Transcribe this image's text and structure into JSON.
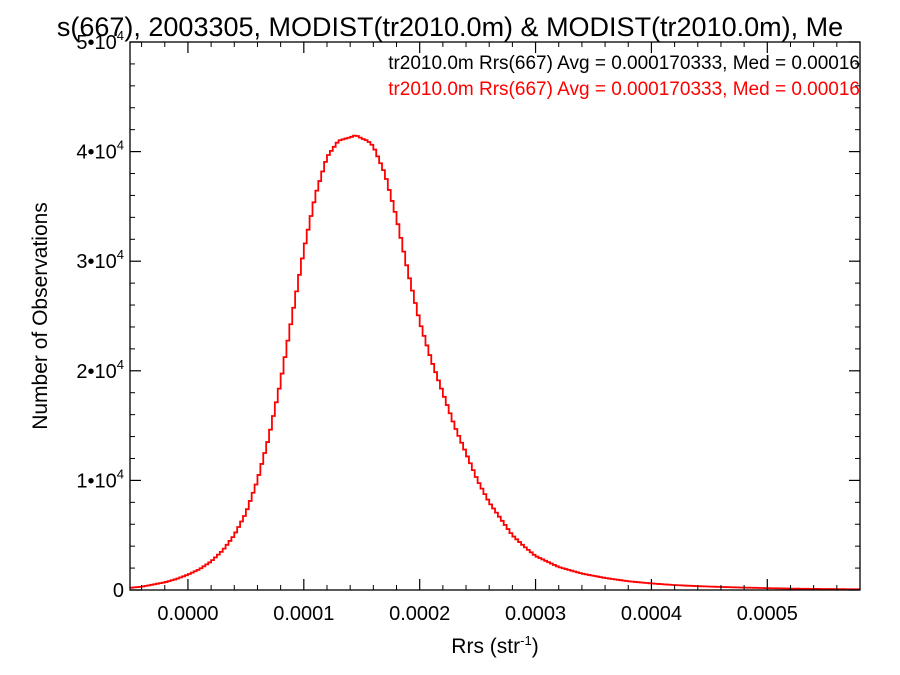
{
  "chart_data": {
    "type": "line",
    "title": "s(667), 2003305, MODIST(tr2010.0m) & MODIST(tr2010.0m), Me",
    "xlabel": "Rrs (str",
    "xlabel_sup": "-1",
    "xlabel_close": ")",
    "ylabel": "Number of Observations",
    "xlim": [
      -5e-05,
      0.00058
    ],
    "ylim": [
      0,
      50000
    ],
    "x_ticks": [
      {
        "value": 0.0,
        "label": "0.0000"
      },
      {
        "value": 0.0001,
        "label": "0.0001"
      },
      {
        "value": 0.0002,
        "label": "0.0002"
      },
      {
        "value": 0.0003,
        "label": "0.0003"
      },
      {
        "value": 0.0004,
        "label": "0.0004"
      },
      {
        "value": 0.0005,
        "label": "0.0005"
      }
    ],
    "y_ticks": [
      {
        "value": 0,
        "mant": "0",
        "exp": ""
      },
      {
        "value": 10000,
        "mant": "1•10",
        "exp": "4"
      },
      {
        "value": 20000,
        "mant": "2•10",
        "exp": "4"
      },
      {
        "value": 30000,
        "mant": "3•10",
        "exp": "4"
      },
      {
        "value": 40000,
        "mant": "4•10",
        "exp": "4"
      },
      {
        "value": 50000,
        "mant": "5•10",
        "exp": "4"
      }
    ],
    "legend_position": "top-right",
    "legend": [
      {
        "text": "tr2010.0m Rrs(667) Avg = 0.000170333, Med = 0.00016",
        "color": "#000000"
      },
      {
        "text": "tr2010.0m Rrs(667) Avg = 0.000170333, Med = 0.00016",
        "color": "#ff0000"
      }
    ],
    "series": [
      {
        "color": "#ff0000",
        "x": [
          -5e-05,
          -4e-05,
          -3e-05,
          -2e-05,
          -1e-05,
          0.0,
          1e-05,
          2e-05,
          3e-05,
          4e-05,
          5e-05,
          6e-05,
          7e-05,
          8e-05,
          9e-05,
          0.0001,
          0.00011,
          0.00012,
          0.00013,
          0.00014,
          0.000145,
          0.00015,
          0.000155,
          0.00016,
          0.00017,
          0.00018,
          0.00019,
          0.0002,
          0.00021,
          0.00022,
          0.00023,
          0.00024,
          0.00025,
          0.00026,
          0.00027,
          0.00028,
          0.00029,
          0.0003,
          0.00032,
          0.00034,
          0.00036,
          0.00038,
          0.0004,
          0.00042,
          0.00044,
          0.00046,
          0.00048,
          0.0005,
          0.00052,
          0.00054,
          0.00056,
          0.00058
        ],
        "y": [
          200,
          300,
          500,
          700,
          1000,
          1400,
          1900,
          2600,
          3600,
          5000,
          7000,
          10000,
          14000,
          19000,
          25000,
          31000,
          36000,
          39500,
          41000,
          41300,
          41500,
          41200,
          41000,
          40500,
          38000,
          34000,
          29000,
          24500,
          21000,
          18000,
          15000,
          12500,
          10000,
          8000,
          6500,
          5000,
          4000,
          3100,
          2100,
          1500,
          1100,
          800,
          600,
          450,
          350,
          280,
          220,
          170,
          130,
          100,
          80,
          60
        ]
      }
    ]
  }
}
